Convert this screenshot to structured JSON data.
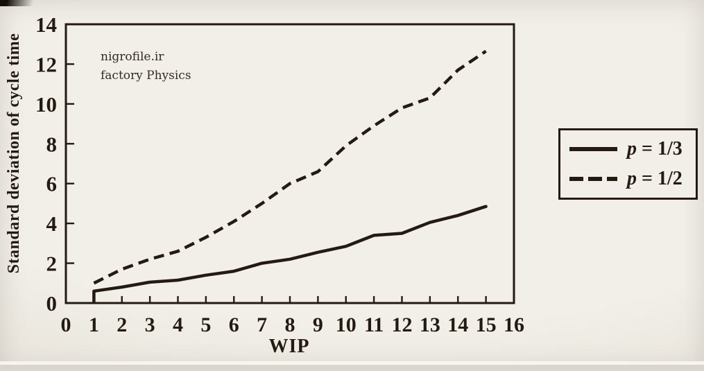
{
  "colors": {
    "ink": "#241a12",
    "paper": "#f2efe8",
    "paper_edge": "#e6e2d9",
    "bottom_strip": "#dbd6cc",
    "bottom_line": "#f7f5ef",
    "watermark_text": "#342a20"
  },
  "watermark": {
    "line1": "nigrofile.ir",
    "line2": "factory Physics"
  },
  "chart_data": {
    "type": "line",
    "title": "",
    "xlabel": "WIP",
    "ylabel": "Standard deviation of cycle time",
    "xlim": [
      0,
      16
    ],
    "ylim": [
      0,
      14
    ],
    "x_ticks": [
      0,
      1,
      2,
      3,
      4,
      5,
      6,
      7,
      8,
      9,
      10,
      11,
      12,
      13,
      14,
      15,
      16
    ],
    "y_ticks": [
      0,
      2,
      4,
      6,
      8,
      10,
      12,
      14
    ],
    "grid": false,
    "legend_position": "outside-right",
    "x": [
      1,
      2,
      3,
      4,
      5,
      6,
      7,
      8,
      9,
      10,
      11,
      12,
      13,
      14,
      15
    ],
    "series": [
      {
        "name": "p = 1/3",
        "line_style": "solid",
        "drops_to_axis_at_start": true,
        "values": [
          0.6,
          0.8,
          1.05,
          1.15,
          1.4,
          1.6,
          2.0,
          2.2,
          2.55,
          2.85,
          3.4,
          3.5,
          4.05,
          4.4,
          4.85
        ]
      },
      {
        "name": "p = 1/2",
        "line_style": "dashed",
        "drops_to_axis_at_start": false,
        "values": [
          1.0,
          1.7,
          2.2,
          2.6,
          3.3,
          4.1,
          5.0,
          6.0,
          6.6,
          7.9,
          8.9,
          9.8,
          10.3,
          11.7,
          12.65
        ]
      }
    ]
  },
  "legend": {
    "items": [
      {
        "symbol": "solid-line",
        "var": "p",
        "rest": " = 1/3"
      },
      {
        "symbol": "dashed-line",
        "var": "p",
        "rest": " = 1/2"
      }
    ]
  }
}
